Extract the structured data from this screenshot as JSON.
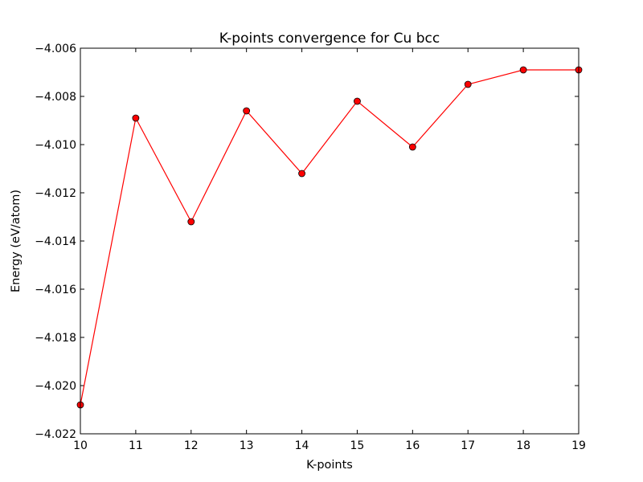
{
  "chart_data": {
    "type": "line",
    "title": "K-points convergence for Cu bcc",
    "xlabel": "K-points",
    "ylabel": "Energy (eV/atom)",
    "xlim": [
      10,
      19
    ],
    "ylim": [
      -4.022,
      -4.006
    ],
    "xticks": [
      10,
      11,
      12,
      13,
      14,
      15,
      16,
      17,
      18,
      19
    ],
    "yticks": [
      -4.022,
      -4.02,
      -4.018,
      -4.016,
      -4.014,
      -4.012,
      -4.01,
      -4.008,
      -4.006
    ],
    "ytick_labels": [
      "−4.022",
      "−4.020",
      "−4.018",
      "−4.016",
      "−4.014",
      "−4.012",
      "−4.010",
      "−4.008",
      "−4.006"
    ],
    "grid": false,
    "series": [
      {
        "color": "#ff0000",
        "marker": "circle",
        "x": [
          10,
          11,
          12,
          13,
          14,
          15,
          16,
          17,
          18,
          19
        ],
        "y": [
          -4.0208,
          -4.0089,
          -4.0132,
          -4.0086,
          -4.0112,
          -4.0082,
          -4.0101,
          -4.0075,
          -4.0069,
          -4.0069
        ]
      }
    ]
  }
}
